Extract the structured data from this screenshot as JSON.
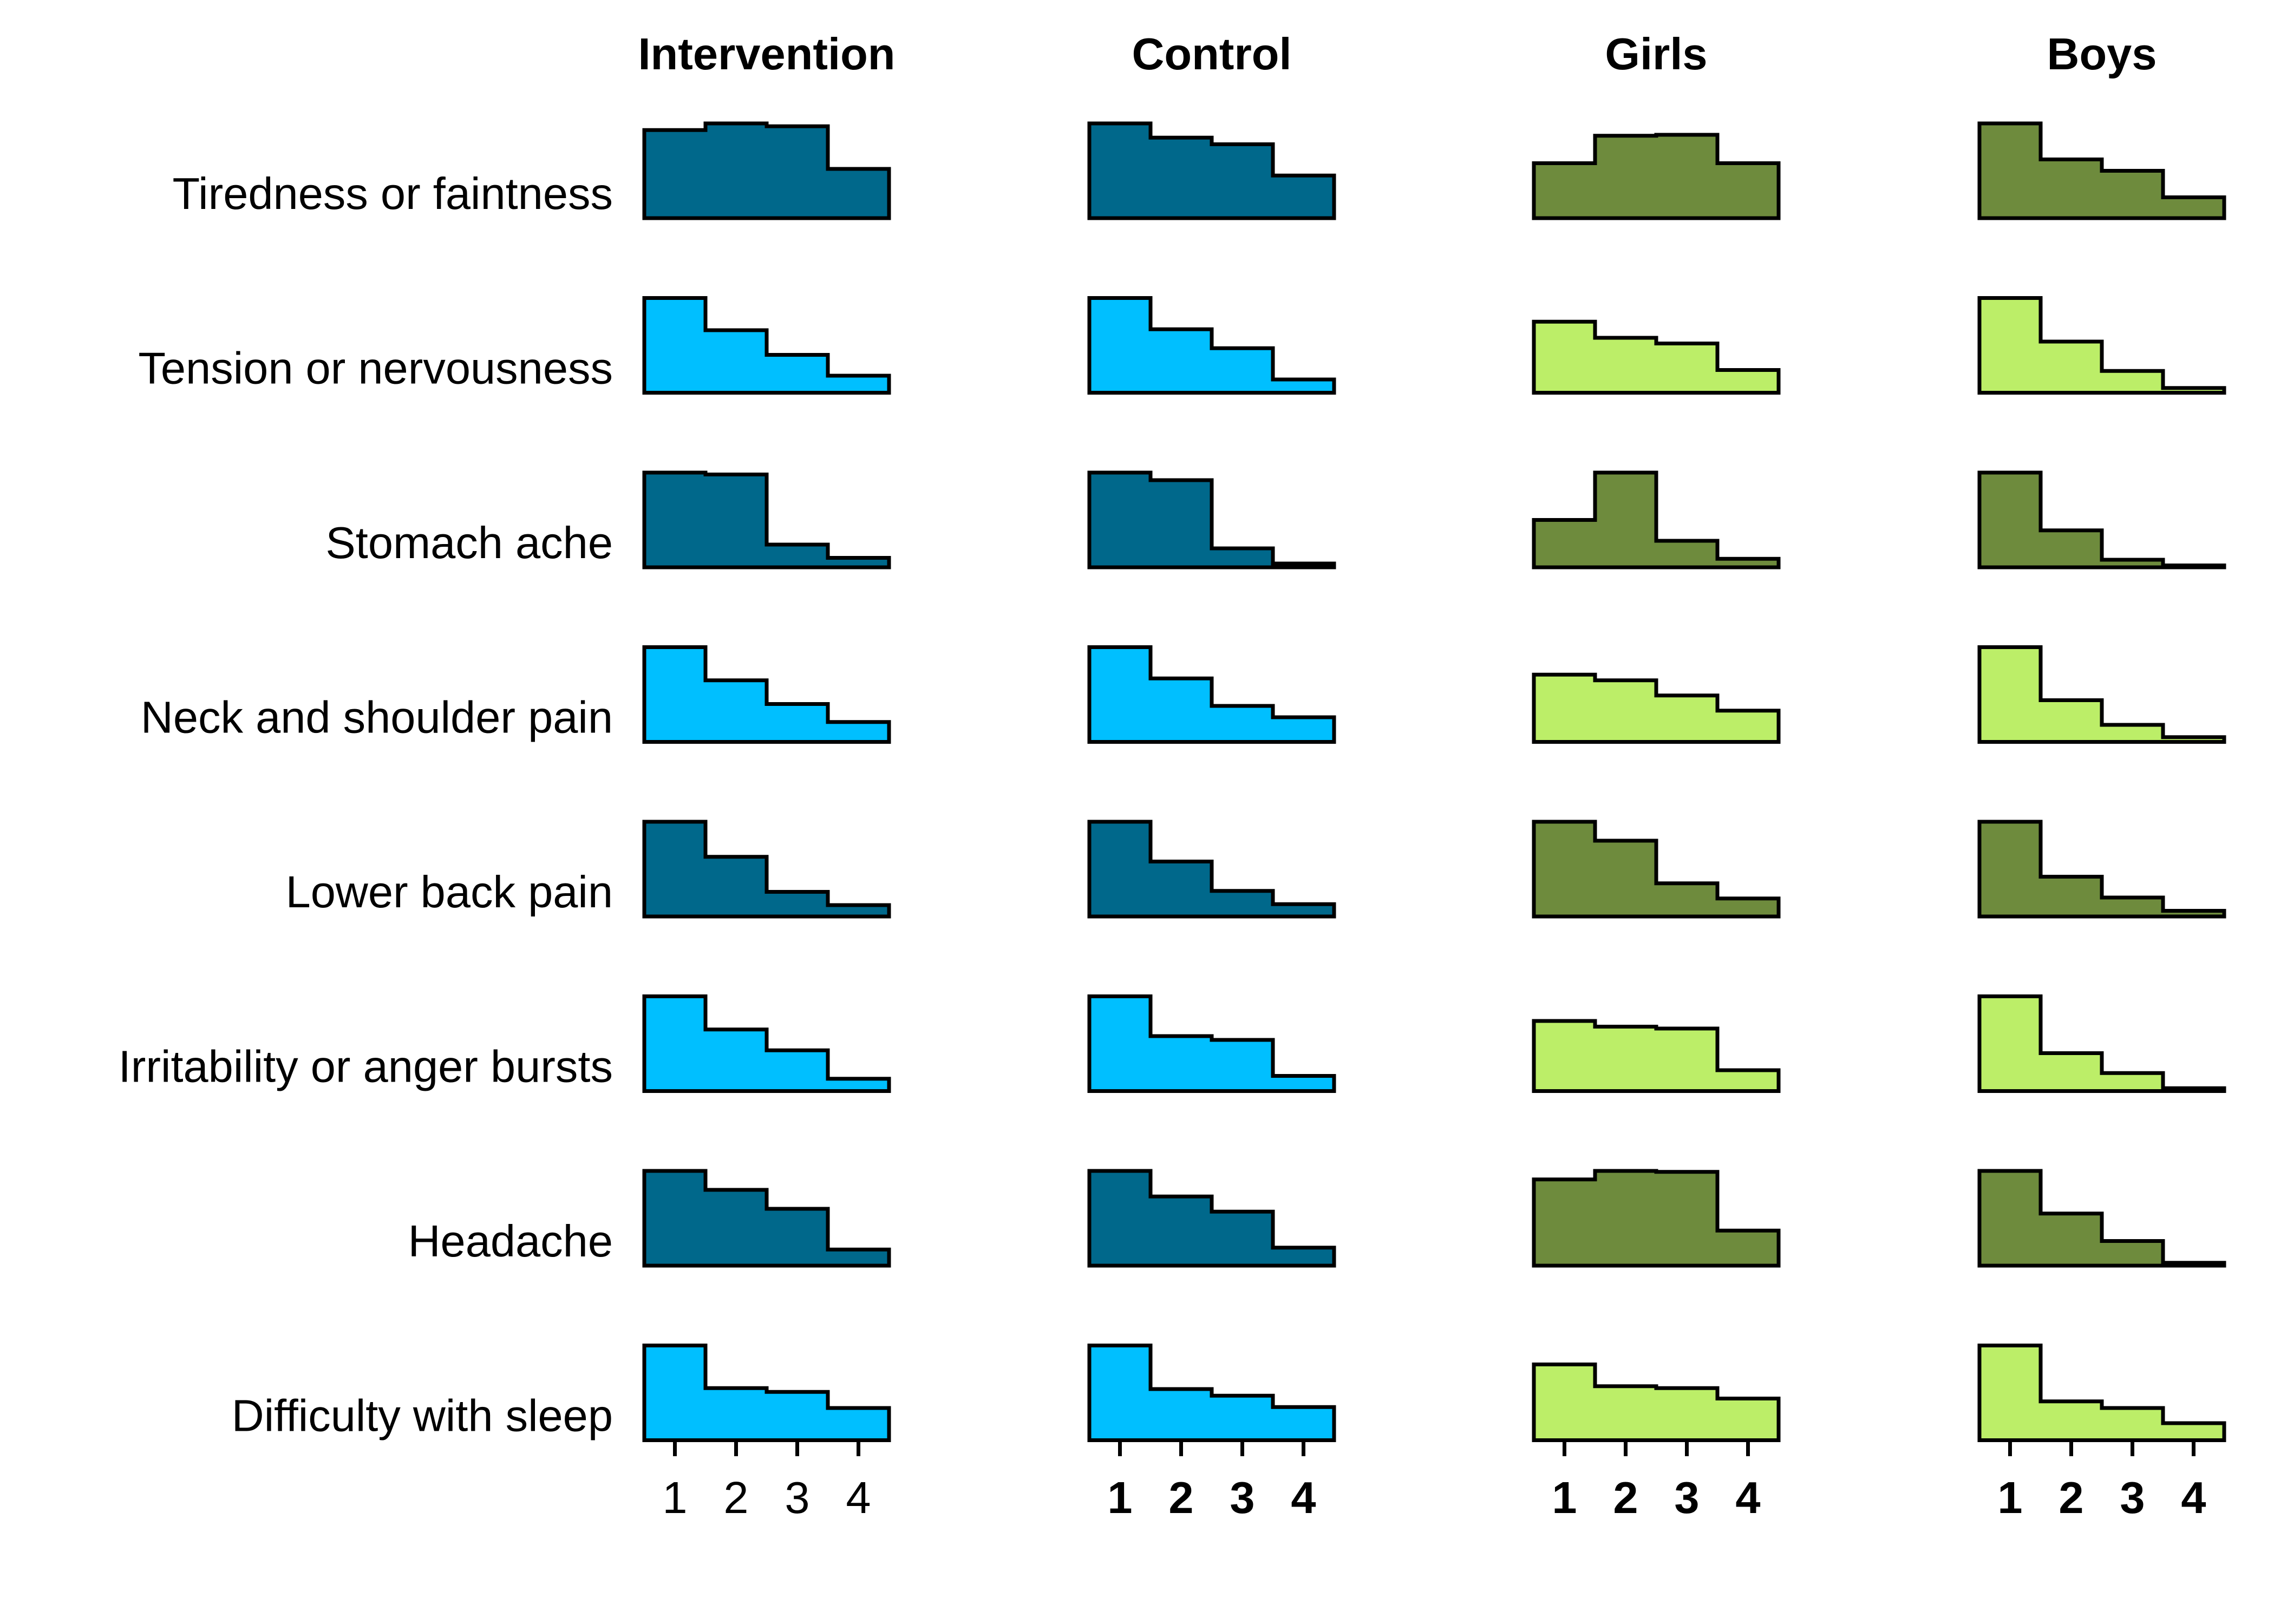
{
  "chart_data": {
    "type": "bar",
    "description_type": "histogram-small-multiples",
    "categories": [
      "1",
      "2",
      "3",
      "4"
    ],
    "columns": [
      {
        "title": "Intervention",
        "dark_color": "#00688B",
        "light_color": "#00BFFF",
        "bold_ticks": false
      },
      {
        "title": "Control",
        "dark_color": "#00688B",
        "light_color": "#00BFFF",
        "bold_ticks": true
      },
      {
        "title": "Girls",
        "dark_color": "#6E8B3D",
        "light_color": "#BCEE68",
        "bold_ticks": true
      },
      {
        "title": "Boys",
        "dark_color": "#6E8B3D",
        "light_color": "#BCEE68",
        "bold_ticks": true
      }
    ],
    "rows": [
      {
        "label": "Tiredness or faintness",
        "shade": "dark"
      },
      {
        "label": "Tension or nervousness",
        "shade": "light"
      },
      {
        "label": "Stomach ache",
        "shade": "dark"
      },
      {
        "label": "Neck and shoulder pain",
        "shade": "light"
      },
      {
        "label": "Lower back pain",
        "shade": "dark"
      },
      {
        "label": "Irritability or anger bursts",
        "shade": "light"
      },
      {
        "label": "Headache",
        "shade": "dark"
      },
      {
        "label": "Difficulty with sleep",
        "shade": "light"
      }
    ],
    "values": [
      [
        [
          0.93,
          1.0,
          0.97,
          0.52
        ],
        [
          1.0,
          0.85,
          0.78,
          0.45
        ],
        [
          0.58,
          0.87,
          0.88,
          0.58
        ],
        [
          1.0,
          0.62,
          0.5,
          0.22
        ]
      ],
      [
        [
          1.0,
          0.66,
          0.4,
          0.18
        ],
        [
          1.0,
          0.67,
          0.47,
          0.14
        ],
        [
          0.75,
          0.58,
          0.52,
          0.24
        ],
        [
          1.0,
          0.54,
          0.23,
          0.05
        ]
      ],
      [
        [
          1.0,
          0.98,
          0.24,
          0.1
        ],
        [
          1.0,
          0.92,
          0.2,
          0.04
        ],
        [
          0.5,
          1.0,
          0.28,
          0.09
        ],
        [
          1.0,
          0.39,
          0.08,
          0.02
        ]
      ],
      [
        [
          1.0,
          0.65,
          0.4,
          0.21
        ],
        [
          1.0,
          0.67,
          0.38,
          0.26
        ],
        [
          0.71,
          0.65,
          0.49,
          0.33
        ],
        [
          1.0,
          0.44,
          0.18,
          0.05
        ]
      ],
      [
        [
          1.0,
          0.63,
          0.26,
          0.12
        ],
        [
          1.0,
          0.58,
          0.27,
          0.13
        ],
        [
          1.0,
          0.8,
          0.35,
          0.19
        ],
        [
          1.0,
          0.42,
          0.2,
          0.06
        ]
      ],
      [
        [
          1.0,
          0.65,
          0.43,
          0.13
        ],
        [
          1.0,
          0.58,
          0.54,
          0.16
        ],
        [
          0.74,
          0.68,
          0.66,
          0.22
        ],
        [
          1.0,
          0.4,
          0.19,
          0.03
        ]
      ],
      [
        [
          1.0,
          0.8,
          0.6,
          0.17
        ],
        [
          1.0,
          0.73,
          0.57,
          0.19
        ],
        [
          0.91,
          1.0,
          0.99,
          0.37
        ],
        [
          1.0,
          0.55,
          0.26,
          0.03
        ]
      ],
      [
        [
          1.0,
          0.55,
          0.51,
          0.34
        ],
        [
          1.0,
          0.54,
          0.47,
          0.35
        ],
        [
          0.8,
          0.57,
          0.55,
          0.44
        ],
        [
          1.0,
          0.41,
          0.34,
          0.18
        ]
      ]
    ],
    "ylim": [
      0,
      1
    ],
    "grid": false,
    "legend": "none"
  }
}
